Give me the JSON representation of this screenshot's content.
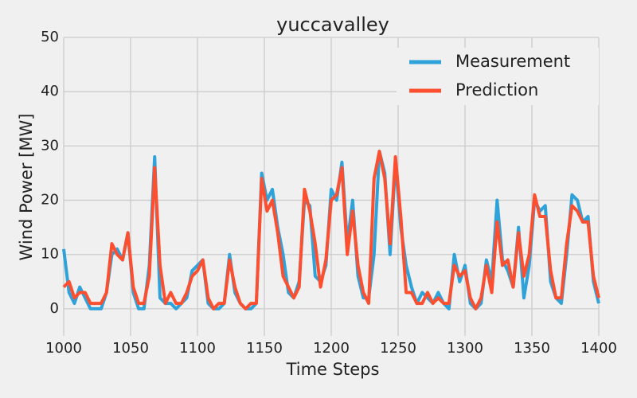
{
  "chart_data": {
    "type": "line",
    "title": "yuccavalley",
    "x_label": "Time Steps",
    "y_label": "Wind Power [MW]",
    "x": [
      1000,
      1004,
      1008,
      1012,
      1016,
      1020,
      1024,
      1028,
      1032,
      1036,
      1040,
      1044,
      1048,
      1052,
      1056,
      1060,
      1064,
      1068,
      1072,
      1076,
      1080,
      1084,
      1088,
      1092,
      1096,
      1100,
      1104,
      1108,
      1112,
      1116,
      1120,
      1124,
      1128,
      1132,
      1136,
      1140,
      1144,
      1148,
      1152,
      1156,
      1160,
      1164,
      1168,
      1172,
      1176,
      1180,
      1184,
      1188,
      1192,
      1196,
      1200,
      1204,
      1208,
      1212,
      1216,
      1220,
      1224,
      1228,
      1232,
      1236,
      1240,
      1244,
      1248,
      1252,
      1256,
      1260,
      1264,
      1268,
      1272,
      1276,
      1280,
      1284,
      1288,
      1292,
      1296,
      1300,
      1304,
      1308,
      1312,
      1316,
      1320,
      1324,
      1328,
      1332,
      1336,
      1340,
      1344,
      1348,
      1352,
      1356,
      1360,
      1364,
      1368,
      1372,
      1376,
      1380,
      1384,
      1388,
      1392,
      1396,
      1400
    ],
    "series": [
      {
        "name": "Measurement",
        "color": "#30a2da",
        "values": [
          11,
          3,
          1,
          4,
          2,
          0,
          0,
          0,
          3,
          10,
          11,
          9,
          14,
          3,
          0,
          0,
          8,
          28,
          2,
          1,
          1,
          0,
          1,
          2,
          7,
          8,
          9,
          1,
          0,
          0,
          1,
          10,
          3,
          1,
          0,
          0,
          1,
          25,
          20,
          22,
          15,
          10,
          3,
          2,
          5,
          20,
          19,
          6,
          5,
          8,
          22,
          20,
          27,
          12,
          20,
          6,
          2,
          2,
          10,
          29,
          25,
          10,
          27,
          15,
          8,
          4,
          1,
          3,
          2,
          1,
          3,
          1,
          0,
          10,
          5,
          8,
          1,
          0,
          1,
          9,
          5,
          20,
          9,
          7,
          4,
          15,
          2,
          8,
          20,
          18,
          19,
          5,
          2,
          1,
          10,
          21,
          20,
          16,
          17,
          5,
          1
        ]
      },
      {
        "name": "Prediction",
        "color": "#fc4f30",
        "values": [
          4,
          5,
          2,
          3,
          3,
          1,
          1,
          1,
          3,
          12,
          10,
          9,
          14,
          4,
          1,
          1,
          6,
          26,
          8,
          1,
          3,
          1,
          1,
          3,
          6,
          7,
          9,
          2,
          0,
          1,
          1,
          9,
          4,
          1,
          0,
          1,
          1,
          24,
          18,
          20,
          14,
          6,
          4,
          2,
          4,
          22,
          18,
          12,
          4,
          9,
          20,
          21,
          26,
          10,
          18,
          8,
          3,
          1,
          24,
          29,
          24,
          12,
          28,
          17,
          3,
          3,
          1,
          1,
          3,
          1,
          2,
          1,
          1,
          8,
          6,
          7,
          2,
          0,
          2,
          8,
          3,
          16,
          8,
          9,
          4,
          14,
          6,
          10,
          21,
          17,
          17,
          7,
          2,
          2,
          12,
          19,
          18,
          16,
          16,
          6,
          2
        ]
      }
    ],
    "xlim": [
      1000,
      1400
    ],
    "xticks": [
      1000,
      1050,
      1100,
      1150,
      1200,
      1250,
      1300,
      1350,
      1400
    ],
    "ylim": [
      -5,
      50
    ],
    "yticks": [
      0,
      10,
      20,
      30,
      40,
      50
    ],
    "grid": true,
    "legend": "upper right"
  }
}
